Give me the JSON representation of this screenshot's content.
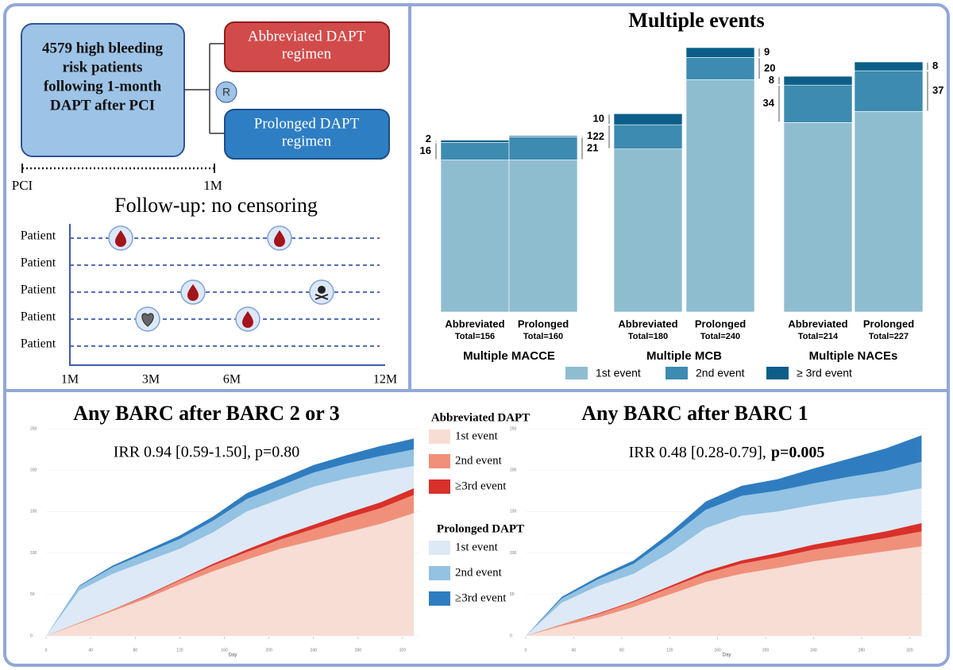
{
  "diagram": {
    "population": {
      "lines": [
        "4579 high bleeding",
        "risk patients",
        "following 1-month",
        "DAPT after PCI"
      ]
    },
    "arms": [
      {
        "lines": [
          "Abbreviated DAPT",
          "regimen"
        ]
      },
      {
        "lines": [
          "Prolonged DAPT",
          "regimen"
        ]
      }
    ],
    "randomization": "R",
    "timeline": {
      "start": "PCI",
      "end": "1M"
    },
    "follow_up": {
      "title": "Follow-up: no censoring",
      "rows": [
        "Patient",
        "Patient",
        "Patient",
        "Patient",
        "Patient"
      ],
      "ticks": [
        "1M",
        "3M",
        "6M",
        "12M"
      ]
    }
  },
  "chart_data": [
    {
      "type": "bar",
      "stacked": true,
      "title": "Multiple events",
      "groups": [
        "Multiple MACCE",
        "Multiple MCB",
        "Multiple NACEs"
      ],
      "categories": [
        "Abbreviated",
        "Prolonged",
        "Abbreviated",
        "Prolonged",
        "Abbreviated",
        "Prolonged"
      ],
      "total_labels": [
        "Total=156",
        "Total=160",
        "Total=180",
        "Total=240",
        "Total=214",
        "Total=227"
      ],
      "series": [
        {
          "name": "1st event",
          "color": "#8fbdd0",
          "values": [
            138,
            138,
            148,
            211,
            172,
            182
          ]
        },
        {
          "name": "2nd event",
          "color": "#3d8bb0",
          "values": [
            16,
            21,
            22,
            20,
            34,
            37
          ]
        },
        {
          "name": "≥ 3rd event",
          "color": "#0c5e88",
          "values": [
            2,
            1,
            10,
            9,
            8,
            8
          ]
        }
      ]
    },
    {
      "type": "area",
      "title": "Any BARC after BARC 2 or 3",
      "subtitle": "IRR 0.94 [0.59-1.50], p=0.80",
      "xlabel": "Day",
      "x": [
        0,
        30,
        60,
        90,
        120,
        150,
        180,
        210,
        240,
        270,
        300,
        330
      ],
      "xlim": [
        0,
        335
      ],
      "xticks": [
        0,
        40,
        80,
        120,
        160,
        200,
        240,
        280,
        320
      ],
      "ylim": [
        0,
        250
      ],
      "yticks": [
        0,
        50,
        100,
        150,
        200,
        250
      ],
      "series_groups": [
        {
          "name": "Abbreviated DAPT",
          "series": [
            {
              "name": "1st event",
              "color": "#f8ddd4",
              "values": [
                0,
                15,
                30,
                45,
                62,
                78,
                92,
                105,
                115,
                125,
                135,
                148
              ]
            },
            {
              "name": "2nd event",
              "color": "#f0907a",
              "values": [
                0,
                1,
                2,
                3,
                5,
                7,
                9,
                11,
                14,
                17,
                19,
                22
              ]
            },
            {
              "name": "≥3rd event",
              "color": "#d9302a",
              "values": [
                0,
                0,
                0,
                1,
                1,
                2,
                3,
                4,
                5,
                6,
                7,
                8
              ]
            }
          ]
        },
        {
          "name": "Prolonged DAPT",
          "series": [
            {
              "name": "1st event",
              "color": "#dde9f6",
              "values": [
                0,
                55,
                75,
                90,
                105,
                125,
                150,
                165,
                180,
                190,
                198,
                205
              ]
            },
            {
              "name": "2nd event",
              "color": "#93c2e2",
              "values": [
                0,
                5,
                8,
                10,
                12,
                14,
                15,
                16,
                17,
                18,
                19,
                20
              ]
            },
            {
              "name": "≥3rd event",
              "color": "#2f7dc0",
              "values": [
                0,
                1,
                2,
                3,
                4,
                5,
                7,
                8,
                9,
                10,
                12,
                13
              ]
            }
          ]
        }
      ]
    },
    {
      "type": "area",
      "title": "Any BARC after BARC 1",
      "subtitle": "IRR 0.48 [0.28-0.79],",
      "subtitle_bold": "p=0.005",
      "xlabel": "Day",
      "x": [
        0,
        30,
        60,
        90,
        120,
        150,
        180,
        210,
        240,
        270,
        300,
        330
      ],
      "xlim": [
        0,
        335
      ],
      "xticks": [
        0,
        40,
        80,
        120,
        160,
        200,
        240,
        280,
        320
      ],
      "ylim": [
        0,
        250
      ],
      "yticks": [
        0,
        50,
        100,
        150,
        200,
        250
      ],
      "series_groups": [
        {
          "series": [
            {
              "color": "#f8ddd4",
              "values": [
                0,
                12,
                22,
                35,
                50,
                65,
                75,
                82,
                90,
                96,
                102,
                108
              ]
            },
            {
              "color": "#f0907a",
              "values": [
                0,
                2,
                4,
                6,
                8,
                10,
                12,
                13,
                14,
                15,
                16,
                18
              ]
            },
            {
              "color": "#d9302a",
              "values": [
                0,
                0,
                1,
                1,
                2,
                3,
                4,
                5,
                6,
                7,
                8,
                10
              ]
            }
          ]
        },
        {
          "series": [
            {
              "color": "#dde9f6",
              "values": [
                0,
                40,
                60,
                75,
                100,
                130,
                145,
                150,
                158,
                165,
                170,
                178
              ]
            },
            {
              "color": "#93c2e2",
              "values": [
                0,
                5,
                8,
                12,
                18,
                22,
                24,
                25,
                26,
                27,
                29,
                32
              ]
            },
            {
              "color": "#2f7dc0",
              "values": [
                0,
                2,
                3,
                4,
                6,
                10,
                12,
                14,
                18,
                22,
                27,
                32
              ]
            }
          ]
        }
      ]
    }
  ]
}
